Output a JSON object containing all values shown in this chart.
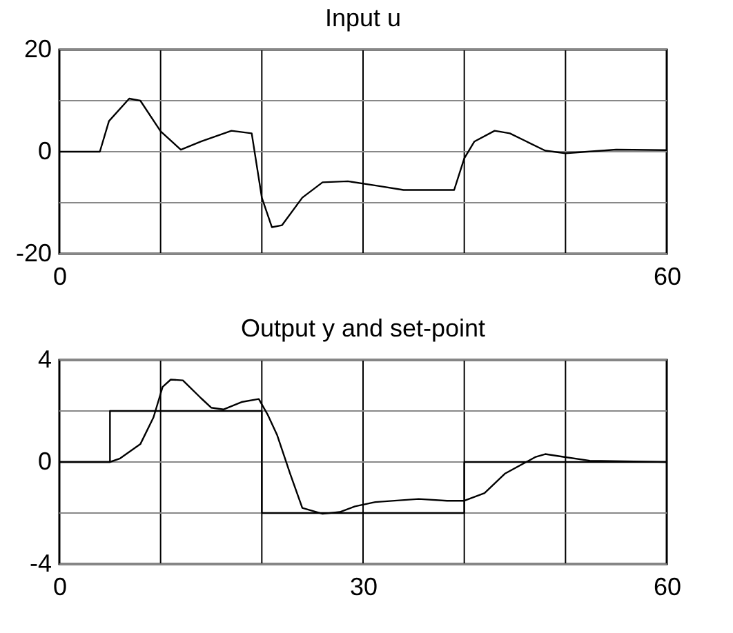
{
  "chart_data": [
    {
      "type": "line",
      "title": "Input u",
      "xlim": [
        0,
        60
      ],
      "ylim": [
        -20,
        20
      ],
      "xticks": [
        0,
        {
          "value": 10,
          "label": null
        },
        {
          "value": 20,
          "label": null
        },
        {
          "value": 30,
          "label": null
        },
        {
          "value": 40,
          "label": null
        },
        {
          "value": 50,
          "label": null
        },
        60
      ],
      "yticks": [
        -20,
        {
          "value": -10,
          "label": null
        },
        0,
        {
          "value": 10,
          "label": null
        },
        20
      ],
      "grid": true,
      "series": [
        {
          "color": "#000000",
          "x": [
            0,
            4,
            4.9,
            6.9,
            8,
            10,
            12,
            14,
            17,
            19,
            20,
            21,
            22,
            24,
            26,
            28.5,
            31.5,
            34,
            39,
            40,
            41,
            43,
            44.5,
            48,
            50,
            55,
            60
          ],
          "values": [
            0,
            0,
            6,
            10.4,
            10,
            4,
            0.4,
            2,
            4.1,
            3.6,
            -9,
            -14.8,
            -14.4,
            -9,
            -6,
            -5.8,
            -6.7,
            -7.5,
            -7.5,
            -1.3,
            2,
            4.1,
            3.6,
            0.2,
            -0.3,
            0.4,
            0.3
          ]
        }
      ]
    },
    {
      "type": "line",
      "title": "Output y and set-point",
      "xlim": [
        0,
        60
      ],
      "ylim": [
        -4,
        4
      ],
      "xticks": [
        0,
        {
          "value": 10,
          "label": null
        },
        {
          "value": 20,
          "label": null
        },
        30,
        {
          "value": 40,
          "label": null
        },
        {
          "value": 50,
          "label": null
        },
        60
      ],
      "yticks": [
        -4,
        {
          "value": -2,
          "label": null
        },
        0,
        {
          "value": 2,
          "label": null
        },
        4
      ],
      "grid": true,
      "series": [
        {
          "color": "#000000",
          "x": [
            0,
            5,
            5,
            20,
            20,
            40,
            40,
            60
          ],
          "values": [
            0,
            0,
            2,
            2,
            -2,
            -2,
            0,
            0
          ]
        },
        {
          "color": "#000000",
          "x": [
            0,
            5,
            6,
            8,
            9.3,
            10.2,
            11,
            12.2,
            14,
            15,
            16.2,
            18,
            19.7,
            20.6,
            21.5,
            22.8,
            24,
            26,
            27.7,
            29.2,
            31.2,
            35.5,
            38.3,
            40,
            42,
            44,
            47,
            48,
            50,
            52.4,
            60
          ],
          "values": [
            0,
            0,
            0.14,
            0.7,
            1.75,
            2.94,
            3.23,
            3.2,
            2.5,
            2.13,
            2.06,
            2.35,
            2.47,
            1.84,
            1.07,
            -0.46,
            -1.8,
            -2.03,
            -1.96,
            -1.74,
            -1.57,
            -1.45,
            -1.52,
            -1.52,
            -1.22,
            -0.46,
            0.19,
            0.31,
            0.19,
            0.05,
            0
          ]
        }
      ]
    }
  ]
}
